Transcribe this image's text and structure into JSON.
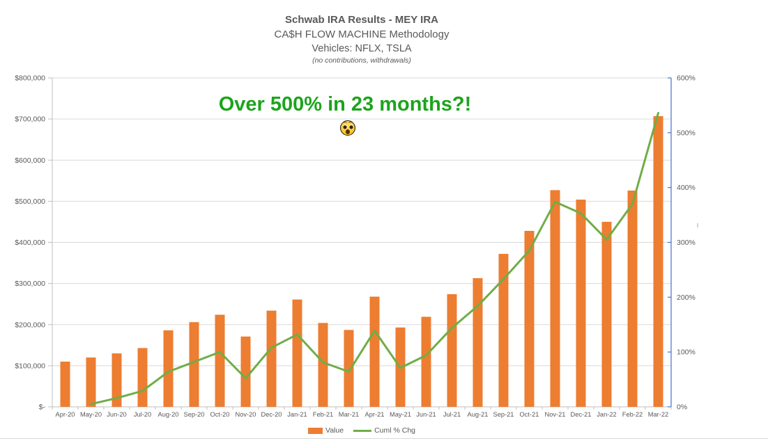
{
  "header": {
    "title": "Schwab IRA Results - MEY IRA",
    "subtitle": "CA$H FLOW MACHINE Methodology",
    "vehicles": "Vehicles: NFLX, TSLA",
    "note": "(no contributions, withdrawals)"
  },
  "annotation": {
    "text": "Over 500% in 23 months?!",
    "emoji": "astonished-face"
  },
  "legend": {
    "value_label": "Value",
    "pct_label": "Cuml % Chg"
  },
  "colors": {
    "bar_orange": "#ed7d31",
    "line_green": "#70ad47",
    "annotation_green": "#1ca41c",
    "right_axis_blue": "#4472c4",
    "gridline_gray": "#d9d9d9",
    "axis_line_gray": "#bfbfbf",
    "label_gray": "#595959"
  },
  "chart_data": {
    "type": "bar",
    "subtype": "combo bar+line, dual axis",
    "title": "Schwab IRA Results - MEY IRA",
    "categories": [
      "Apr-20",
      "May-20",
      "Jun-20",
      "Jul-20",
      "Aug-20",
      "Sep-20",
      "Oct-20",
      "Nov-20",
      "Dec-20",
      "Jan-21",
      "Feb-21",
      "Mar-21",
      "Apr-21",
      "May-21",
      "Jun-21",
      "Jul-21",
      "Aug-21",
      "Sep-21",
      "Oct-21",
      "Nov-21",
      "Dec-21",
      "Jan-22",
      "Feb-22",
      "Mar-22"
    ],
    "series": [
      {
        "name": "Value",
        "type": "bar",
        "axis": "left",
        "values": [
          110000,
          120000,
          130000,
          143000,
          186000,
          206000,
          224000,
          171000,
          234000,
          261000,
          204000,
          187000,
          268000,
          193000,
          219000,
          274000,
          313000,
          372000,
          428000,
          527000,
          504000,
          450000,
          526000,
          707000
        ]
      },
      {
        "name": "Cuml % Chg",
        "type": "line",
        "axis": "right",
        "values": [
          null,
          5,
          16,
          29,
          64,
          82,
          100,
          52,
          108,
          132,
          81,
          64,
          139,
          71,
          94,
          144,
          184,
          233,
          285,
          374,
          353,
          305,
          370,
          536
        ]
      }
    ],
    "left_axis": {
      "min": 0,
      "max": 800000,
      "tick_step": 100000,
      "tick_labels": [
        "$800,000",
        "$700,000",
        "$600,000",
        "$500,000",
        "$400,000",
        "$300,000",
        "$200,000",
        "$100,000",
        "$-"
      ]
    },
    "right_axis": {
      "min": 0,
      "max": 600,
      "tick_step": 100,
      "tick_labels": [
        "600%",
        "500%",
        "400%",
        "300%",
        "200%",
        "100%",
        "0%"
      ]
    },
    "grid": true,
    "legend_position": "bottom"
  }
}
